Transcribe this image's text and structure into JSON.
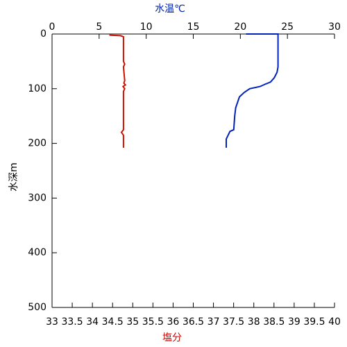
{
  "chart_data": {
    "type": "profile",
    "xlabel": "水温℃",
    "x2label": "塩分",
    "ylabel": "水深m",
    "xlim": [
      0,
      30
    ],
    "xticks": [
      0,
      5,
      10,
      15,
      20,
      25,
      30
    ],
    "x2lim": [
      33,
      40
    ],
    "x2ticks": [
      33,
      33.5,
      34,
      34.5,
      35,
      35.5,
      36,
      36.5,
      37,
      37.5,
      38,
      38.5,
      39,
      39.5,
      40
    ],
    "ylim": [
      0,
      500
    ],
    "yticks": [
      0,
      100,
      200,
      300,
      400,
      500
    ],
    "y_inverted": true,
    "xlabel_color": "#0022aa",
    "x2label_color": "#cc0000",
    "series": [
      {
        "color": "#0022bb",
        "axis": "x",
        "y": [
          0,
          0,
          3,
          60,
          70,
          80,
          88,
          92,
          96,
          100,
          107,
          115,
          135,
          150,
          175,
          178,
          185,
          192,
          208
        ],
        "values": [
          20.6,
          24.0,
          24.0,
          24.0,
          23.9,
          23.6,
          23.2,
          22.6,
          22.1,
          21.0,
          20.4,
          19.9,
          19.5,
          19.4,
          19.3,
          18.9,
          18.7,
          18.5,
          18.5
        ]
      },
      {
        "color": "#cc1100",
        "axis": "x2",
        "y": [
          2,
          3,
          5,
          50,
          55,
          60,
          85,
          90,
          93,
          96,
          100,
          105,
          175,
          180,
          185,
          208
        ],
        "values": [
          34.42,
          34.7,
          34.77,
          34.77,
          34.8,
          34.77,
          34.8,
          34.78,
          34.82,
          34.76,
          34.8,
          34.77,
          34.77,
          34.72,
          34.77,
          34.77
        ]
      }
    ]
  }
}
